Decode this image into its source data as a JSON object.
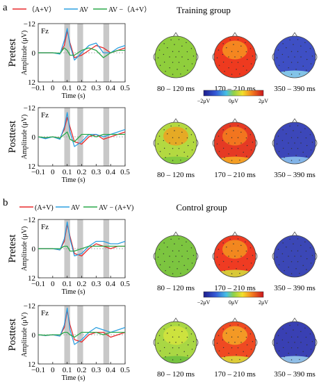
{
  "panels": [
    {
      "letter": "a",
      "group_title": "Training group",
      "legend": [
        "（A+V）",
        "AV",
        "AV −（A+V）"
      ],
      "rows": [
        {
          "condition": "Pretest",
          "topos": [
            {
              "window": "80 – 120 ms",
              "base": "#8fce3c",
              "front": null,
              "low": null
            },
            {
              "window": "170 – 210 ms",
              "base": "#ee3a1f",
              "front": "#f7a021",
              "low": null
            },
            {
              "window": "350 – 390 ms",
              "base": "#3e4fc4",
              "front": null,
              "low": "#8fd8ee"
            }
          ]
        },
        {
          "condition": "Posttest",
          "topos": [
            {
              "window": "80 – 120 ms",
              "base": "#b3d941",
              "front": "#f59a1c",
              "low": "#7cc840"
            },
            {
              "window": "170 – 210 ms",
              "base": "#e53a24",
              "front": "#f58a1e",
              "low": "#f7b025"
            },
            {
              "window": "350 – 390 ms",
              "base": "#3c47b9",
              "front": null,
              "low": "#8ec8f0"
            }
          ]
        }
      ],
      "colorbar": {
        "ticks": [
          "−2μV",
          "0μV",
          "2μV"
        ]
      }
    },
    {
      "letter": "b",
      "group_title": "Control group",
      "legend": [
        "(A+V)",
        "AV",
        "AV − (A+V)"
      ],
      "rows": [
        {
          "condition": "Pretest",
          "topos": [
            {
              "window": "80 – 120 ms",
              "base": "#7cc540",
              "front": null,
              "low": null
            },
            {
              "window": "170 – 210 ms",
              "base": "#ef3b22",
              "front": "#f3a21f",
              "low": "#d4e23c"
            },
            {
              "window": "350 – 390 ms",
              "base": "#3b47b6",
              "front": null,
              "low": null
            }
          ]
        },
        {
          "condition": "Posttest",
          "topos": [
            {
              "window": "80 – 120 ms",
              "base": "#a9d744",
              "front": "#d9e53c",
              "low": "#6cbf3e"
            },
            {
              "window": "170 – 210 ms",
              "base": "#ef4a22",
              "front": "#f4b427",
              "low": "#d9e23b"
            },
            {
              "window": "350 – 390 ms",
              "base": "#3940b3",
              "front": null,
              "low": "#9fd4ee"
            }
          ]
        }
      ],
      "colorbar": {
        "ticks": [
          "−2μV",
          "0μV",
          "2μV"
        ]
      }
    }
  ],
  "erp_axes": {
    "channel": "Fz",
    "ylabel": "Amplitude (μV)",
    "xlabel": "Time (s)",
    "yticks": [
      "−12",
      "0",
      "12"
    ],
    "xticks": [
      "−0.1",
      "0",
      "0.1",
      "0.2",
      "0.3",
      "0.4",
      "0.5"
    ],
    "xlim": [
      -0.1,
      0.5
    ],
    "ylim": [
      -12,
      12
    ],
    "shaded_windows": [
      [
        0.08,
        0.12
      ],
      [
        0.17,
        0.21
      ],
      [
        0.35,
        0.39
      ]
    ]
  },
  "colors": {
    "a_plus_v": "#e8292b",
    "av": "#2c9fe0",
    "diff": "#2aa94a",
    "window_shade": "#c8c8c8"
  },
  "chart_data": [
    {
      "type": "line",
      "panel": "a",
      "condition": "Pretest",
      "channel": "Fz",
      "x": [
        -0.1,
        -0.05,
        0,
        0.05,
        0.08,
        0.1,
        0.12,
        0.15,
        0.2,
        0.25,
        0.3,
        0.35,
        0.4,
        0.45,
        0.5
      ],
      "series": [
        {
          "name": "（A+V）",
          "values": [
            0,
            0,
            0,
            0.3,
            -3,
            -9,
            -4,
            2,
            1,
            -1,
            -3,
            -2,
            0,
            -1,
            -2
          ]
        },
        {
          "name": "AV",
          "values": [
            0,
            0,
            0,
            0.5,
            -5,
            -10,
            -3,
            3,
            0,
            -3,
            -4,
            0,
            0,
            -2,
            -3
          ]
        },
        {
          "name": "AV −（A+V）",
          "values": [
            0,
            0,
            0,
            0.2,
            -2,
            -1,
            1,
            1,
            -1,
            -2,
            -1,
            2,
            0,
            -1,
            -1
          ]
        }
      ]
    },
    {
      "type": "line",
      "panel": "a",
      "condition": "Posttest",
      "channel": "Fz",
      "x": [
        -0.1,
        -0.05,
        0,
        0.05,
        0.08,
        0.1,
        0.12,
        0.15,
        0.2,
        0.25,
        0.3,
        0.35,
        0.4,
        0.45,
        0.5
      ],
      "series": [
        {
          "name": "（A+V）",
          "values": [
            0,
            0.5,
            0,
            0.5,
            -3,
            -8,
            -4,
            2,
            3,
            0,
            -1,
            1,
            0,
            -1,
            -2
          ]
        },
        {
          "name": "AV",
          "values": [
            0,
            0.8,
            0,
            1,
            -4,
            -10,
            -2,
            4,
            2,
            -1,
            -1,
            0,
            -1,
            -2,
            -3
          ]
        },
        {
          "name": "AV −（A+V）",
          "values": [
            0,
            0.3,
            0,
            0.5,
            -1,
            -2,
            1,
            2,
            -1,
            -1,
            0,
            -1,
            -1,
            -1,
            -1
          ]
        }
      ]
    },
    {
      "type": "line",
      "panel": "b",
      "condition": "Pretest",
      "channel": "Fz",
      "x": [
        -0.1,
        -0.05,
        0,
        0.05,
        0.08,
        0.1,
        0.12,
        0.15,
        0.2,
        0.25,
        0.3,
        0.35,
        0.4,
        0.45,
        0.5
      ],
      "series": [
        {
          "name": "(A+V)",
          "values": [
            0,
            0,
            0,
            0.5,
            -3,
            -10,
            -5,
            2,
            3,
            0,
            -2,
            -1,
            0,
            -1,
            -1
          ]
        },
        {
          "name": "AV",
          "values": [
            0,
            0,
            0,
            0.5,
            -4,
            -11,
            -4,
            3,
            2,
            -1,
            -3,
            -3,
            -2,
            -2,
            -3
          ]
        },
        {
          "name": "AV − (A+V)",
          "values": [
            0,
            0,
            0,
            0,
            -1,
            -1,
            1,
            1,
            0,
            -1,
            -1,
            -1,
            -1,
            -1,
            -1
          ]
        }
      ]
    },
    {
      "type": "line",
      "panel": "b",
      "condition": "Posttest",
      "channel": "Fz",
      "x": [
        -0.1,
        -0.05,
        0,
        0.05,
        0.08,
        0.1,
        0.12,
        0.15,
        0.2,
        0.25,
        0.3,
        0.35,
        0.4,
        0.45,
        0.5
      ],
      "series": [
        {
          "name": "(A+V)",
          "values": [
            0,
            0.3,
            0,
            0.5,
            -3,
            -10,
            -4,
            2,
            3,
            0,
            -1,
            -1,
            1,
            0,
            -1
          ]
        },
        {
          "name": "AV",
          "values": [
            0,
            0.3,
            0,
            0.5,
            -4,
            -11,
            -2,
            4,
            2,
            -1,
            -3,
            -2,
            -1,
            -2,
            -3
          ]
        },
        {
          "name": "AV − (A+V)",
          "values": [
            0,
            0.2,
            0,
            0,
            -1,
            -1,
            0,
            1,
            -1,
            -1,
            -1,
            0,
            -1,
            -1,
            -1
          ]
        }
      ]
    }
  ]
}
